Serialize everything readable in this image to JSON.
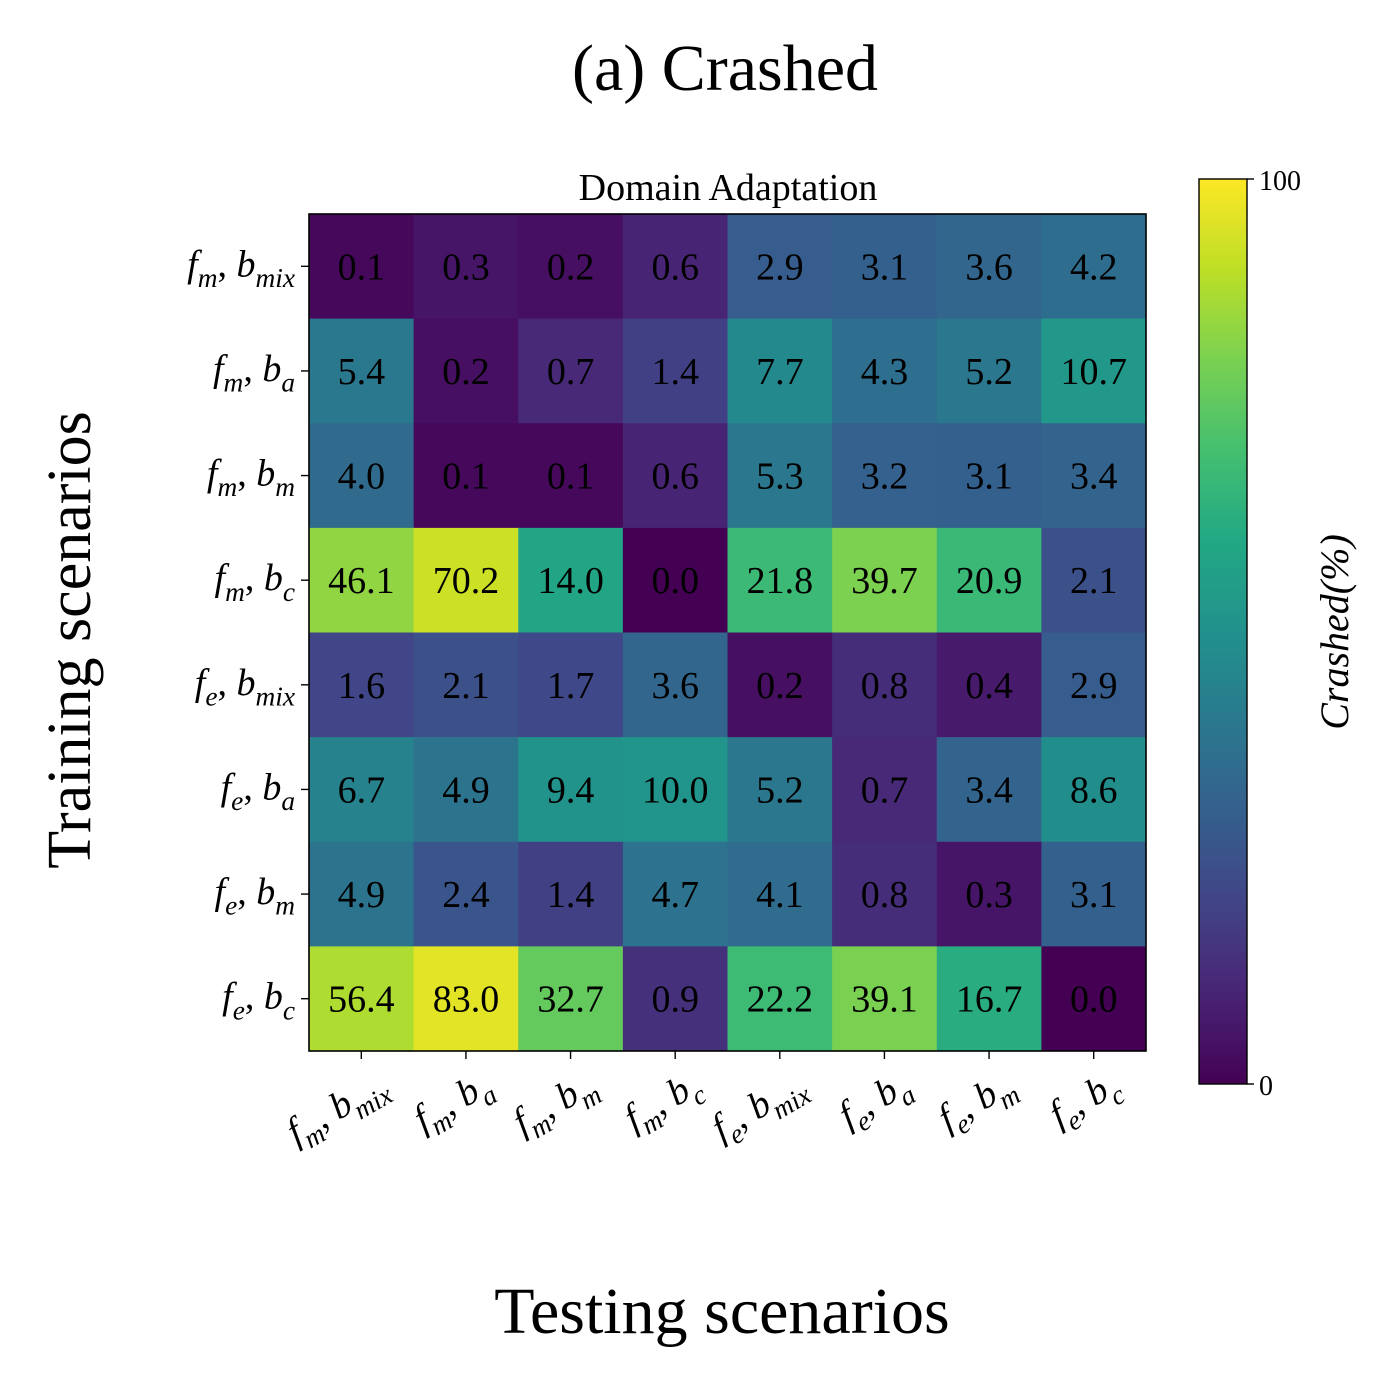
{
  "chart_data": {
    "type": "heatmap",
    "title": "(a) Crashed",
    "subtitle": "Domain Adaptation",
    "xlabel": "Testing scenarios",
    "ylabel": "Training scenarios",
    "colorbar_label": "Crashed(%)",
    "colorbar_ticks": [
      "0",
      "100"
    ],
    "colorbar_range": [
      0,
      100
    ],
    "colormap": "viridis",
    "x_categories": [
      {
        "f": "f",
        "fs": "m",
        "b": "b",
        "bs": "mix"
      },
      {
        "f": "f",
        "fs": "m",
        "b": "b",
        "bs": "a"
      },
      {
        "f": "f",
        "fs": "m",
        "b": "b",
        "bs": "m"
      },
      {
        "f": "f",
        "fs": "m",
        "b": "b",
        "bs": "c"
      },
      {
        "f": "f",
        "fs": "e",
        "b": "b",
        "bs": "mix"
      },
      {
        "f": "f",
        "fs": "e",
        "b": "b",
        "bs": "a"
      },
      {
        "f": "f",
        "fs": "e",
        "b": "b",
        "bs": "m"
      },
      {
        "f": "f",
        "fs": "e",
        "b": "b",
        "bs": "c"
      }
    ],
    "y_categories": [
      {
        "f": "f",
        "fs": "m",
        "b": "b",
        "bs": "mix"
      },
      {
        "f": "f",
        "fs": "m",
        "b": "b",
        "bs": "a"
      },
      {
        "f": "f",
        "fs": "m",
        "b": "b",
        "bs": "m"
      },
      {
        "f": "f",
        "fs": "m",
        "b": "b",
        "bs": "c"
      },
      {
        "f": "f",
        "fs": "e",
        "b": "b",
        "bs": "mix"
      },
      {
        "f": "f",
        "fs": "e",
        "b": "b",
        "bs": "a"
      },
      {
        "f": "f",
        "fs": "e",
        "b": "b",
        "bs": "m"
      },
      {
        "f": "f",
        "fs": "e",
        "b": "b",
        "bs": "c"
      }
    ],
    "values": [
      [
        0.1,
        0.3,
        0.2,
        0.6,
        2.9,
        3.1,
        3.6,
        4.2
      ],
      [
        5.4,
        0.2,
        0.7,
        1.4,
        7.7,
        4.3,
        5.2,
        10.7
      ],
      [
        4.0,
        0.1,
        0.1,
        0.6,
        5.3,
        3.2,
        3.1,
        3.4
      ],
      [
        46.1,
        70.2,
        14.0,
        0.0,
        21.8,
        39.7,
        20.9,
        2.1
      ],
      [
        1.6,
        2.1,
        1.7,
        3.6,
        0.2,
        0.8,
        0.4,
        2.9
      ],
      [
        6.7,
        4.9,
        9.4,
        10.0,
        5.2,
        0.7,
        3.4,
        8.6
      ],
      [
        4.9,
        2.4,
        1.4,
        4.7,
        4.1,
        0.8,
        0.3,
        3.1
      ],
      [
        56.4,
        83.0,
        32.7,
        0.9,
        22.2,
        39.1,
        16.7,
        0.0
      ]
    ]
  }
}
